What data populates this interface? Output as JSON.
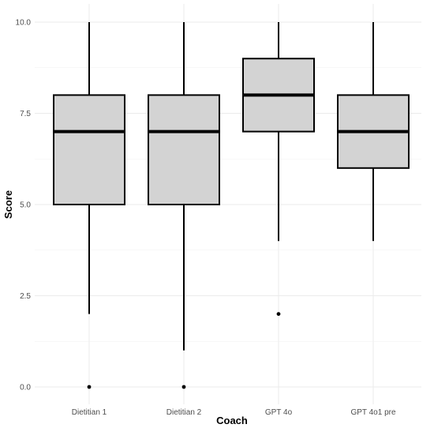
{
  "chart_data": {
    "type": "box",
    "xlabel": "Coach",
    "ylabel": "Score",
    "ylim": [
      0,
      10
    ],
    "yticks": [
      0,
      2.5,
      5,
      7.5,
      10
    ],
    "ytick_labels": [
      "0.0",
      "2.5",
      "5.0",
      "7.5",
      "10.0"
    ],
    "grid": true,
    "legend": "none",
    "box_fill": "#d3d3d3",
    "outline_color": "#000000",
    "categories": [
      "Dietitian 1",
      "Dietitian 2",
      "GPT 4o",
      "GPT 4o1 pre"
    ],
    "boxes": [
      {
        "category": "Dietitian 1",
        "whisker_low": 2,
        "q1": 5,
        "median": 7,
        "q3": 8,
        "whisker_high": 10,
        "outliers": [
          0
        ]
      },
      {
        "category": "Dietitian 2",
        "whisker_low": 1,
        "q1": 5,
        "median": 7,
        "q3": 8,
        "whisker_high": 10,
        "outliers": [
          0
        ]
      },
      {
        "category": "GPT 4o",
        "whisker_low": 4,
        "q1": 7,
        "median": 8,
        "q3": 9,
        "whisker_high": 10,
        "outliers": [
          2
        ]
      },
      {
        "category": "GPT 4o1 pre",
        "whisker_low": 4,
        "q1": 6,
        "median": 7,
        "q3": 8,
        "whisker_high": 10,
        "outliers": []
      }
    ]
  }
}
